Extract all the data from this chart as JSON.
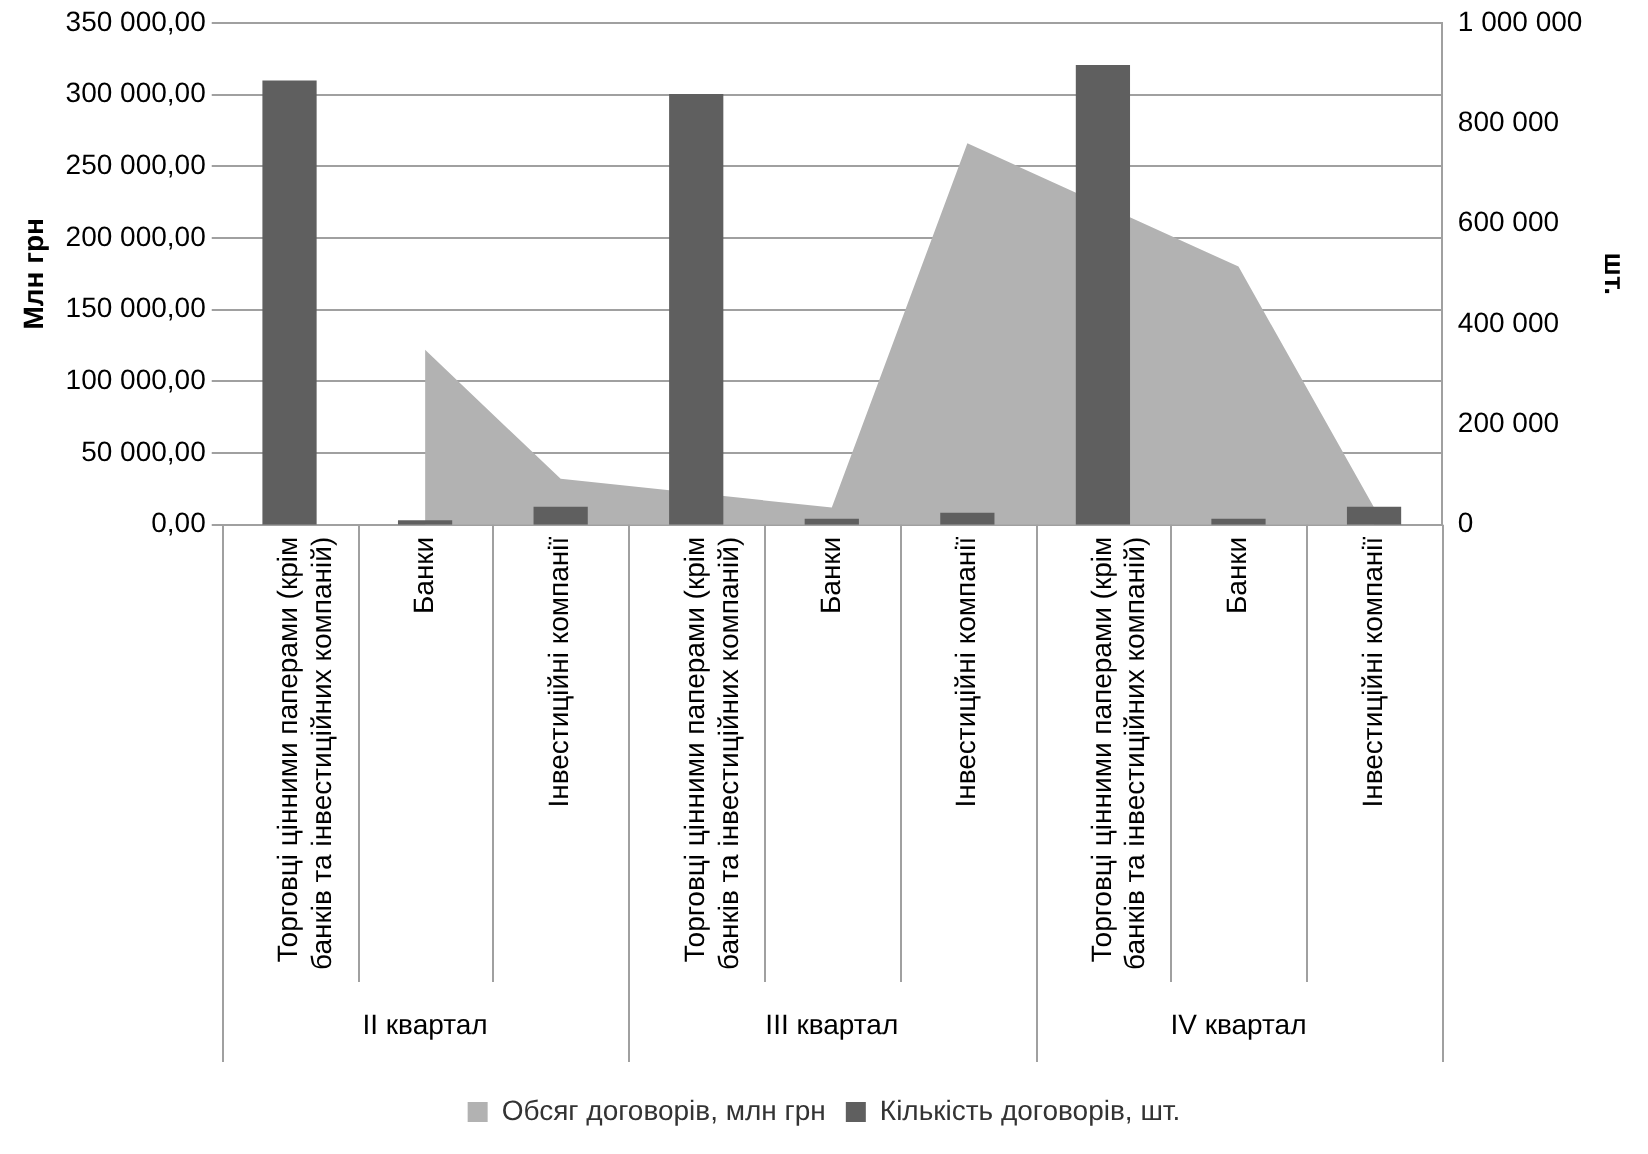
{
  "chart_data": {
    "type": "bar",
    "categories": [
      "Торговці цінними паперами (крім банків та інвестиційних компаній)",
      "Банки",
      "Інвестиційні компанії",
      "Торговці цінними паперами (крім банків та інвестиційних компаній)",
      "Банки",
      "Інвестиційні компанії",
      "Торговці цінними паперами (крім банків та інвестиційних компаній)",
      "Банки",
      "Інвестиційні компанії"
    ],
    "annotations": [
      "II квартал",
      "III квартал",
      "IV квартал"
    ],
    "ylabel": "Млн грн",
    "y2label": "шт.",
    "series": [
      {
        "name": "Обсяг договорів, млн грн",
        "type": "area",
        "axis": "y",
        "color": "#b2b2b2",
        "values": [
          null,
          122000,
          32000,
          null,
          12000,
          266000,
          null,
          180000,
          12000
        ]
      },
      {
        "name": "Кількість договорів, шт.",
        "axis": "y2",
        "color": "#5f5f5f",
        "values": [
          885000,
          9000,
          36000,
          858000,
          12000,
          24000,
          916000,
          12000,
          36000
        ]
      }
    ],
    "ylim": [
      0,
      350000
    ],
    "yticks": [
      {
        "value": 0,
        "label": "0,00"
      },
      {
        "value": 50000,
        "label": "50 000,00"
      },
      {
        "value": 100000,
        "label": "100 000,00"
      },
      {
        "value": 150000,
        "label": "150 000,00"
      },
      {
        "value": 200000,
        "label": "200 000,00"
      },
      {
        "value": 250000,
        "label": "250 000,00"
      },
      {
        "value": 300000,
        "label": "300 000,00"
      },
      {
        "value": 350000,
        "label": "350 000,00"
      }
    ],
    "y2lim": [
      0,
      1000000
    ],
    "y2ticks": [
      {
        "value": 0,
        "label": "0"
      },
      {
        "value": 200000,
        "label": "200 000"
      },
      {
        "value": 400000,
        "label": "400 000"
      },
      {
        "value": 600000,
        "label": "600 000"
      },
      {
        "value": 800000,
        "label": "800 000"
      },
      {
        "value": 1000000,
        "label": "1 000 000"
      }
    ],
    "grid": "y",
    "legend": "bottom",
    "marker": "none"
  }
}
